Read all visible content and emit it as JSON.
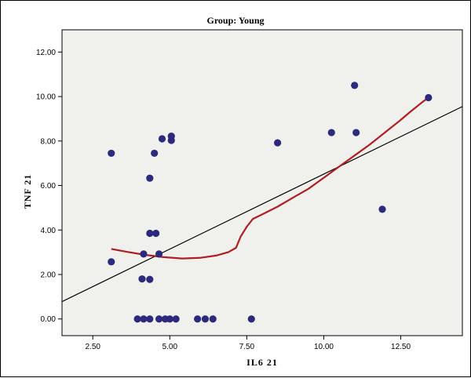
{
  "chart_data": {
    "type": "scatter",
    "title": "Group:  Young",
    "xlabel": "IL6  21",
    "ylabel": "TNF 21",
    "xlim": [
      1.5,
      14.5
    ],
    "ylim": [
      -0.75,
      13.0
    ],
    "xticks": [
      "2.50",
      "5.00",
      "7.50",
      "10.00",
      "12.50"
    ],
    "xtick_values": [
      2.5,
      5.0,
      7.5,
      10.0,
      12.5
    ],
    "yticks": [
      "0.00",
      "2.00",
      "4.00",
      "6.00",
      "8.00",
      "10.00",
      "12.00"
    ],
    "ytick_values": [
      0,
      2,
      4,
      6,
      8,
      10,
      12
    ],
    "grid": false,
    "colors": {
      "background": "#f0f0ec",
      "points": "#2b2a7c",
      "loess": "#b01e22",
      "fit_line": "#000000"
    },
    "series": [
      {
        "points": [
          [
            3.1,
            7.45
          ],
          [
            3.1,
            2.57
          ],
          [
            3.95,
            0.0
          ],
          [
            4.15,
            0.0
          ],
          [
            4.35,
            0.0
          ],
          [
            4.15,
            2.92
          ],
          [
            4.1,
            1.8
          ],
          [
            4.35,
            1.78
          ],
          [
            4.35,
            3.85
          ],
          [
            4.55,
            3.85
          ],
          [
            4.65,
            2.92
          ],
          [
            4.35,
            6.33
          ],
          [
            4.5,
            7.45
          ],
          [
            4.75,
            8.1
          ],
          [
            5.05,
            8.22
          ],
          [
            5.05,
            8.03
          ],
          [
            4.65,
            0.0
          ],
          [
            4.85,
            0.0
          ],
          [
            5.0,
            0.0
          ],
          [
            5.2,
            0.0
          ],
          [
            5.9,
            0.0
          ],
          [
            6.15,
            0.0
          ],
          [
            6.4,
            0.0
          ],
          [
            7.65,
            0.0
          ],
          [
            8.5,
            7.92
          ],
          [
            10.25,
            8.38
          ],
          [
            11.0,
            10.5
          ],
          [
            11.05,
            8.38
          ],
          [
            11.9,
            4.93
          ],
          [
            13.4,
            9.95
          ]
        ]
      }
    ],
    "fit_line": {
      "x": [
        1.5,
        14.5
      ],
      "y": [
        0.78,
        9.55
      ]
    },
    "loess_curve": {
      "x": [
        3.1,
        3.6,
        4.2,
        4.8,
        5.4,
        6.0,
        6.5,
        6.9,
        7.15,
        7.3,
        7.5,
        7.7,
        8.0,
        8.5,
        9.0,
        9.5,
        10.0,
        10.5,
        11.0,
        11.5,
        12.0,
        12.5,
        12.8,
        13.2,
        13.4
      ],
      "y": [
        3.15,
        3.02,
        2.88,
        2.78,
        2.72,
        2.75,
        2.85,
        3.0,
        3.2,
        3.7,
        4.15,
        4.5,
        4.7,
        5.05,
        5.45,
        5.85,
        6.35,
        6.85,
        7.35,
        7.85,
        8.4,
        8.95,
        9.3,
        9.75,
        9.95
      ]
    }
  }
}
